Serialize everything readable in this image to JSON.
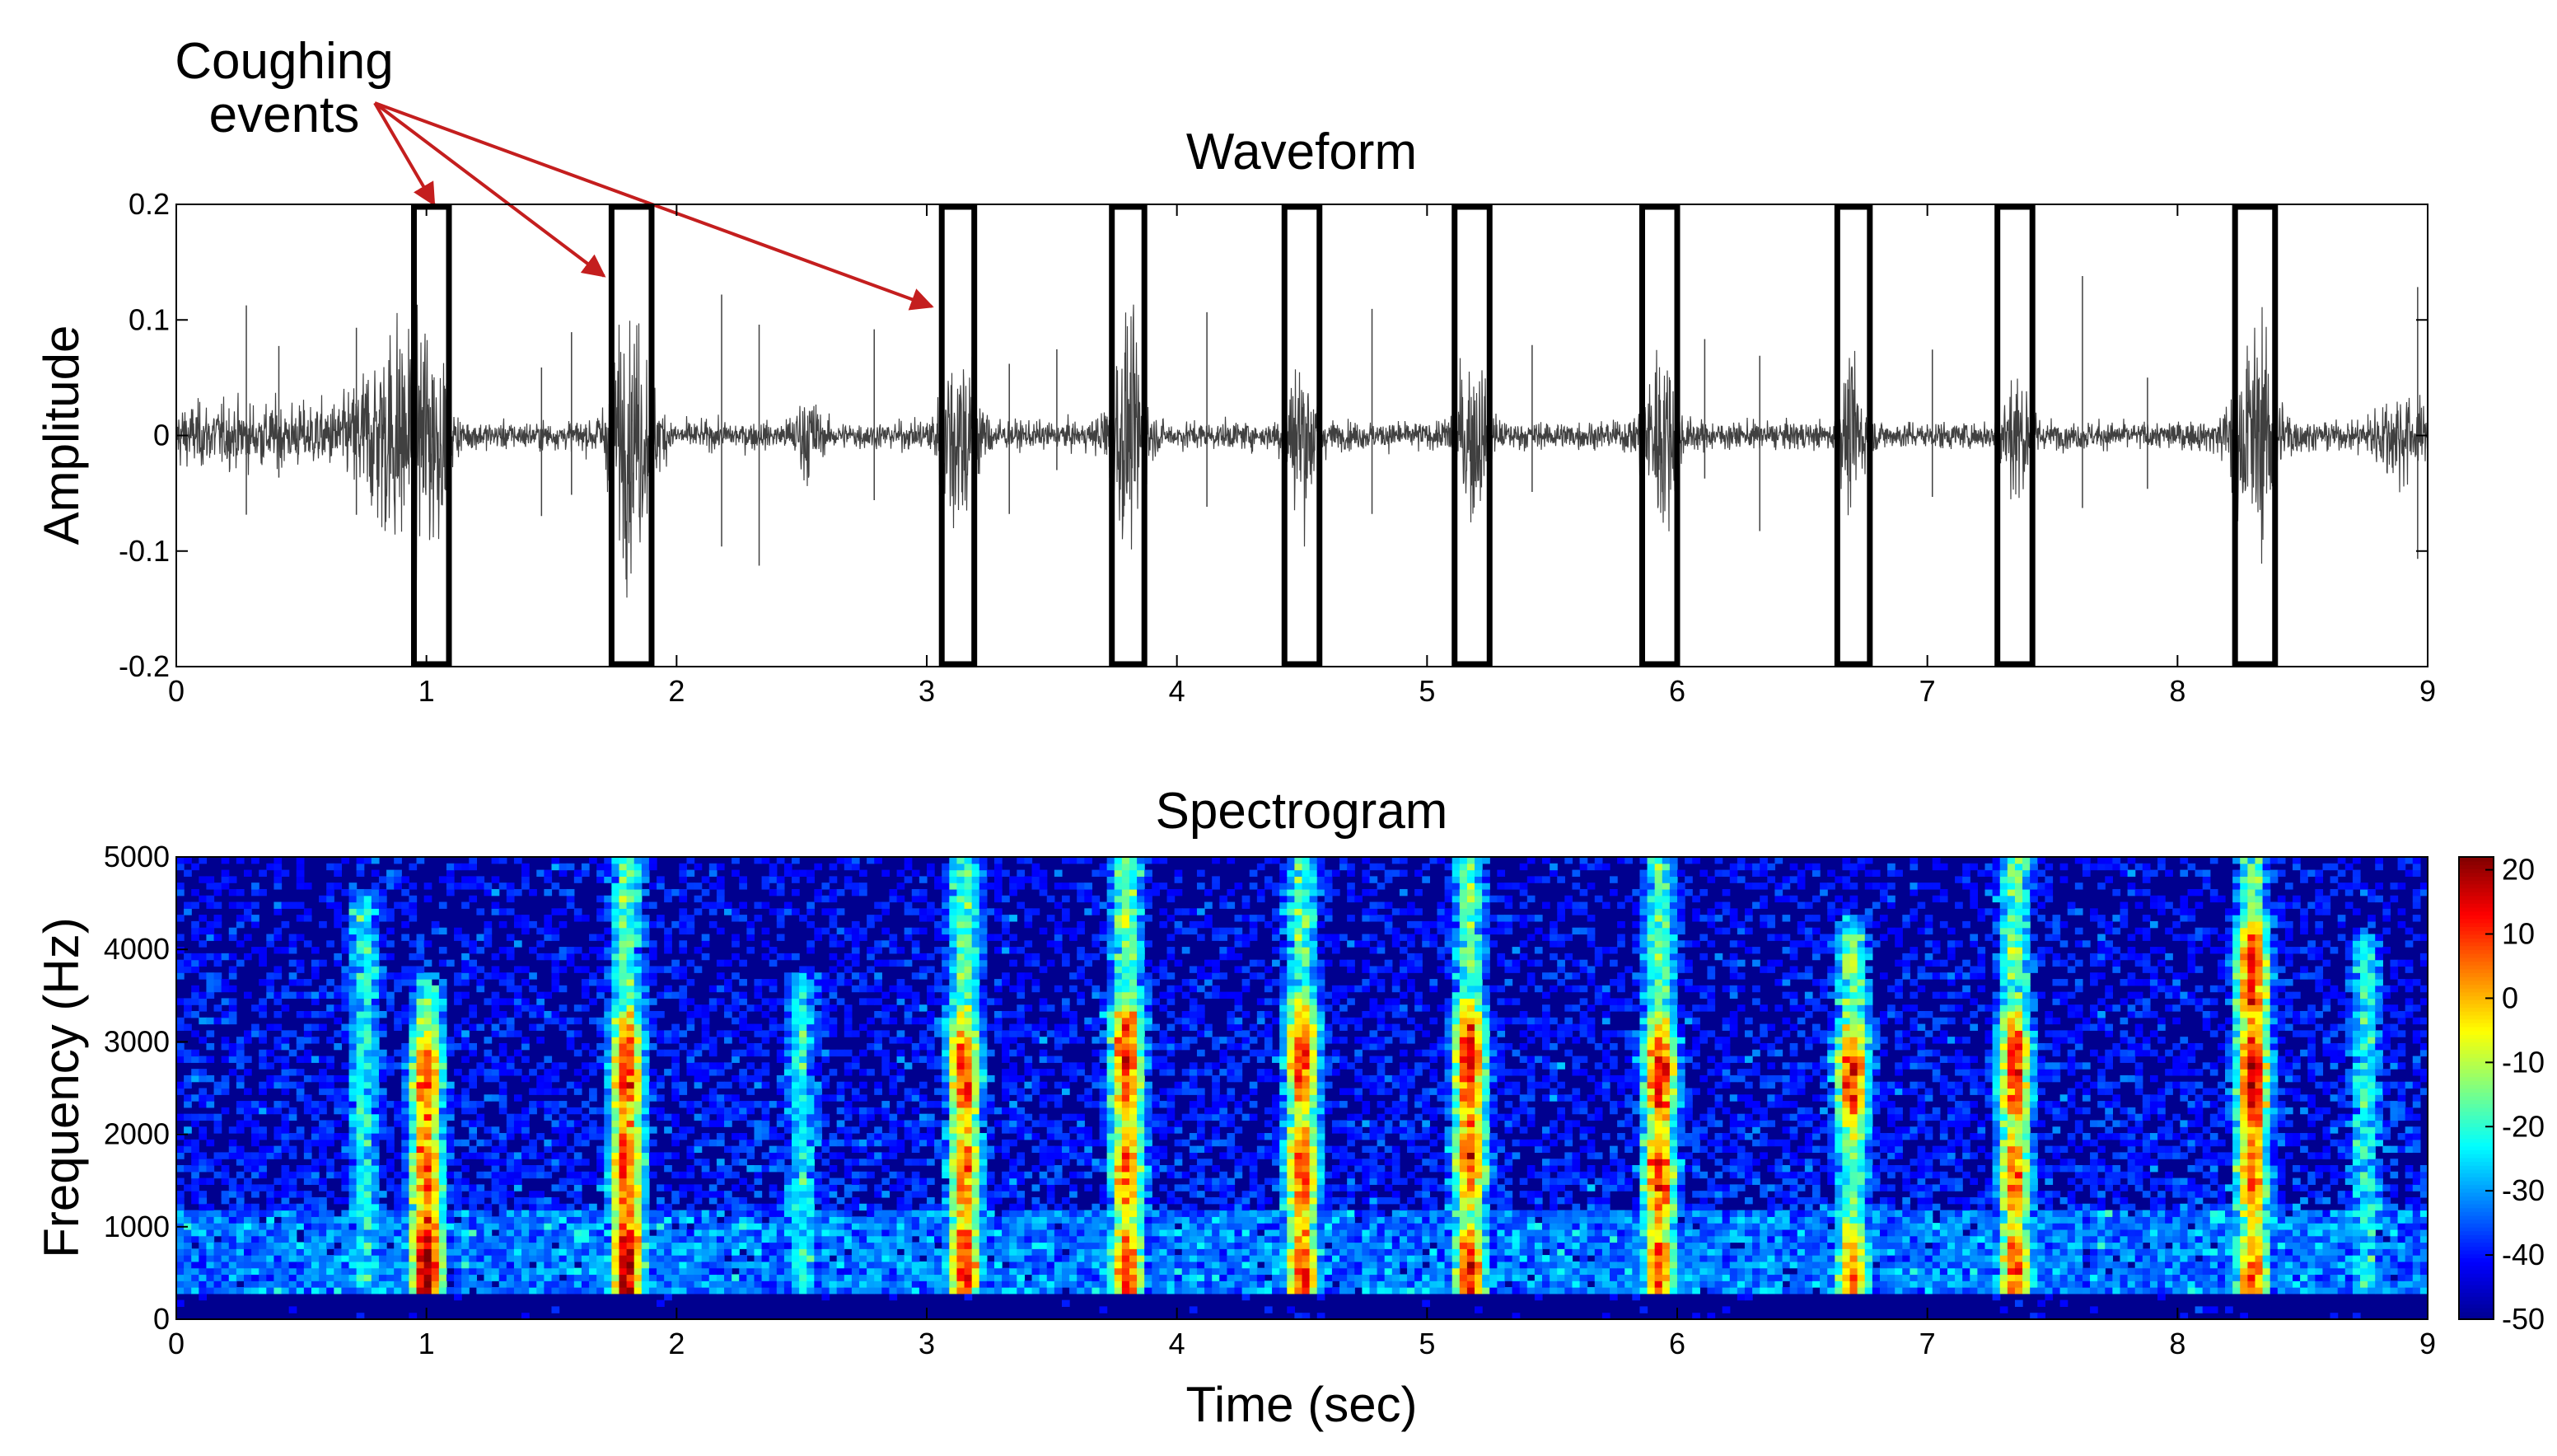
{
  "annotation": {
    "text_line1": "Coughing",
    "text_line2": "events",
    "arrow_color": "#c41e1e"
  },
  "chart_data": [
    {
      "type": "line",
      "title": "Waveform",
      "ylabel": "Amplitude",
      "xlabel": "",
      "xlim": [
        0,
        9
      ],
      "ylim": [
        -0.2,
        0.2
      ],
      "xticks": [
        0,
        1,
        2,
        3,
        4,
        5,
        6,
        7,
        8,
        9
      ],
      "yticks": [
        0.2,
        0.1,
        0,
        -0.1,
        -0.2
      ],
      "ytick_labels": [
        "0.2",
        "0.1",
        "0",
        "-0.1",
        "-0.2"
      ],
      "line_color": "#404040",
      "grid": false,
      "cough_events": [
        {
          "start": 0.95,
          "end": 1.09
        },
        {
          "start": 1.74,
          "end": 1.9
        },
        {
          "start": 3.06,
          "end": 3.19
        },
        {
          "start": 3.74,
          "end": 3.87
        },
        {
          "start": 4.43,
          "end": 4.57
        },
        {
          "start": 5.11,
          "end": 5.25
        },
        {
          "start": 5.86,
          "end": 6.0
        },
        {
          "start": 6.64,
          "end": 6.77
        },
        {
          "start": 7.28,
          "end": 7.42
        },
        {
          "start": 8.23,
          "end": 8.39
        }
      ]
    },
    {
      "type": "heatmap",
      "title": "Spectrogram",
      "xlabel": "Time (sec)",
      "ylabel": "Frequency (Hz)",
      "xlim": [
        0,
        9
      ],
      "ylim": [
        0,
        5000
      ],
      "xticks": [
        0,
        1,
        2,
        3,
        4,
        5,
        6,
        7,
        8,
        9
      ],
      "yticks": [
        0,
        1000,
        2000,
        3000,
        4000,
        5000
      ],
      "colorbar": {
        "min": -50,
        "max": 22,
        "ticks": [
          20,
          10,
          0,
          -10,
          -20,
          -30,
          -40,
          -50
        ],
        "colormap": [
          "#00008f",
          "#0000ff",
          "#0080ff",
          "#00ffff",
          "#80ff80",
          "#ffff00",
          "#ff8000",
          "#ff0000",
          "#800000"
        ]
      },
      "energy_columns": [
        {
          "t": 0.75,
          "lo": 300,
          "hi": 4400,
          "peak": -12
        },
        {
          "t": 1.0,
          "lo": 300,
          "hi": 3500,
          "peak": 20,
          "hot": [
            [
              600,
              20
            ],
            [
              1600,
              10
            ],
            [
              2600,
              8
            ]
          ]
        },
        {
          "t": 1.8,
          "lo": 300,
          "hi": 5000,
          "peak": 20,
          "hot": [
            [
              600,
              20
            ],
            [
              1600,
              12
            ],
            [
              2700,
              12
            ]
          ]
        },
        {
          "t": 2.5,
          "lo": 300,
          "hi": 3500,
          "peak": -15
        },
        {
          "t": 3.15,
          "lo": 300,
          "hi": 5000,
          "peak": 14,
          "hot": [
            [
              500,
              12
            ],
            [
              1600,
              8
            ],
            [
              2700,
              10
            ]
          ]
        },
        {
          "t": 3.8,
          "lo": 300,
          "hi": 5000,
          "peak": 14,
          "hot": [
            [
              500,
              10
            ],
            [
              1600,
              8
            ],
            [
              2800,
              14
            ]
          ]
        },
        {
          "t": 4.5,
          "lo": 300,
          "hi": 5000,
          "peak": 12,
          "hot": [
            [
              500,
              8
            ],
            [
              1600,
              10
            ],
            [
              2800,
              12
            ]
          ]
        },
        {
          "t": 5.17,
          "lo": 300,
          "hi": 5000,
          "peak": 14,
          "hot": [
            [
              500,
              10
            ],
            [
              1800,
              8
            ],
            [
              2800,
              14
            ]
          ]
        },
        {
          "t": 5.93,
          "lo": 300,
          "hi": 5000,
          "peak": 12,
          "hot": [
            [
              500,
              8
            ],
            [
              1500,
              10
            ],
            [
              2600,
              12
            ]
          ]
        },
        {
          "t": 6.7,
          "lo": 300,
          "hi": 4100,
          "peak": 12,
          "hot": [
            [
              500,
              6
            ],
            [
              2600,
              12
            ]
          ]
        },
        {
          "t": 7.35,
          "lo": 300,
          "hi": 5000,
          "peak": 12,
          "hot": [
            [
              500,
              8
            ],
            [
              1600,
              6
            ],
            [
              2700,
              12
            ]
          ]
        },
        {
          "t": 8.3,
          "lo": 300,
          "hi": 5000,
          "peak": 18,
          "hot": [
            [
              500,
              8
            ],
            [
              1500,
              8
            ],
            [
              2600,
              18
            ],
            [
              3700,
              14
            ]
          ]
        },
        {
          "t": 8.75,
          "lo": 300,
          "hi": 4000,
          "peak": -15
        }
      ]
    }
  ]
}
